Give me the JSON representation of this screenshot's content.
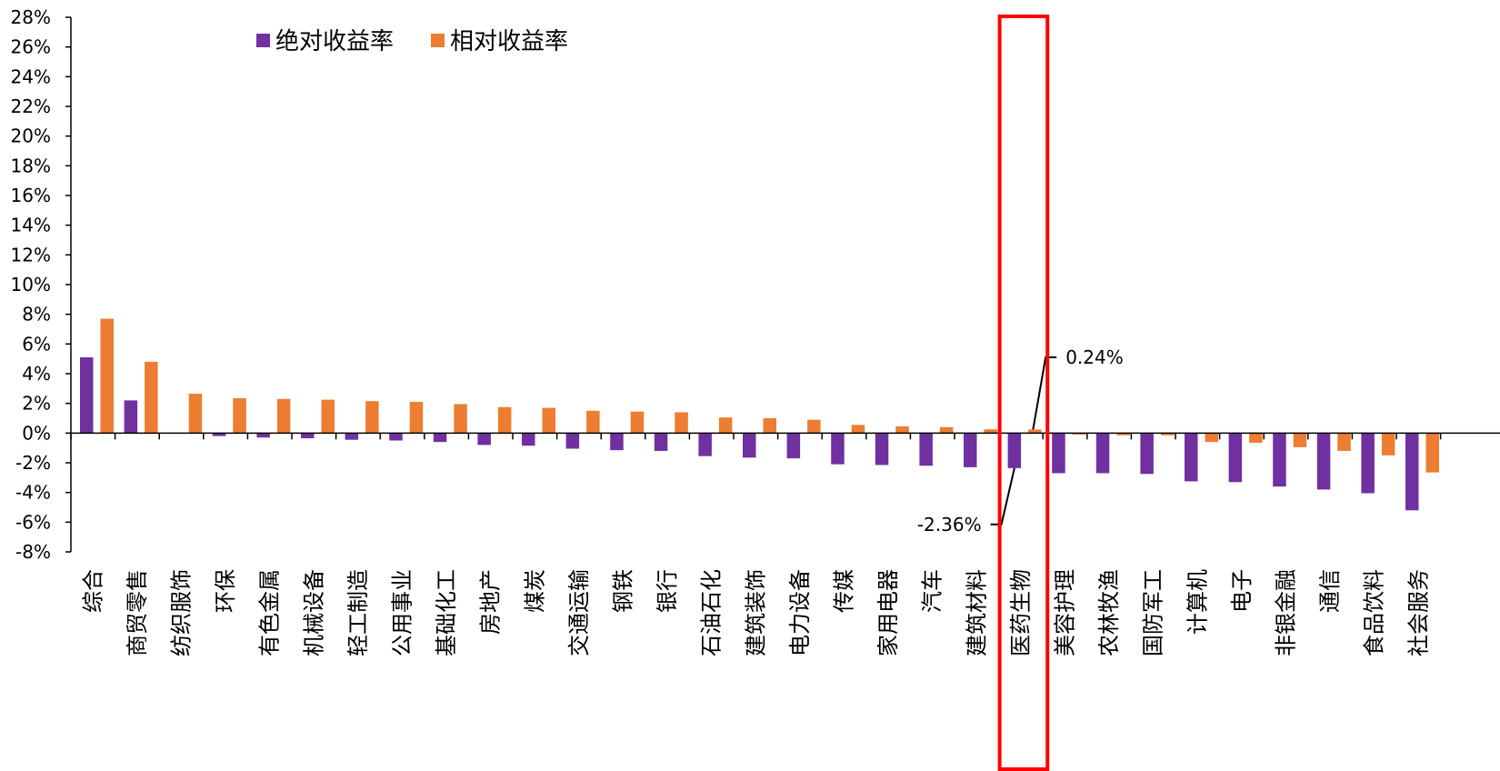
{
  "chart_data": {
    "type": "bar",
    "title": "",
    "xlabel": "",
    "ylabel": "",
    "ylim": [
      -8,
      28
    ],
    "ytick_step": 2,
    "ytick_suffix": "%",
    "grid": false,
    "legend_position": "top-left",
    "categories": [
      "综合",
      "商贸零售",
      "纺织服饰",
      "环保",
      "有色金属",
      "机械设备",
      "轻工制造",
      "公用事业",
      "基础化工",
      "房地产",
      "煤炭",
      "交通运输",
      "钢铁",
      "银行",
      "石油石化",
      "建筑装饰",
      "电力设备",
      "传媒",
      "家用电器",
      "汽车",
      "建筑材料",
      "医药生物",
      "美容护理",
      "农林牧渔",
      "国防军工",
      "计算机",
      "电子",
      "非银金融",
      "通信",
      "食品饮料",
      "社会服务"
    ],
    "series": [
      {
        "name": "绝对收益率",
        "color": "#7030A0",
        "values": [
          5.1,
          2.2,
          0.0,
          -0.2,
          -0.3,
          -0.35,
          -0.45,
          -0.5,
          -0.6,
          -0.8,
          -0.85,
          -1.05,
          -1.15,
          -1.2,
          -1.55,
          -1.65,
          -1.7,
          -2.1,
          -2.15,
          -2.2,
          -2.3,
          -2.36,
          -2.7,
          -2.7,
          -2.75,
          -3.25,
          -3.3,
          -3.6,
          -3.8,
          -4.05,
          -5.2
        ]
      },
      {
        "name": "相对收益率",
        "color": "#ED7D31",
        "values": [
          7.7,
          4.8,
          2.65,
          2.35,
          2.3,
          2.25,
          2.15,
          2.1,
          1.95,
          1.75,
          1.7,
          1.5,
          1.45,
          1.4,
          1.05,
          1.0,
          0.9,
          0.55,
          0.45,
          0.4,
          0.25,
          0.24,
          -0.1,
          -0.15,
          -0.15,
          -0.6,
          -0.65,
          -0.95,
          -1.2,
          -1.5,
          -2.65
        ]
      }
    ],
    "annotations": [
      {
        "text": "0.24%"
      },
      {
        "text": "-2.36%"
      }
    ],
    "highlight_category": "医药生物",
    "highlight_color": "#FF0000"
  }
}
